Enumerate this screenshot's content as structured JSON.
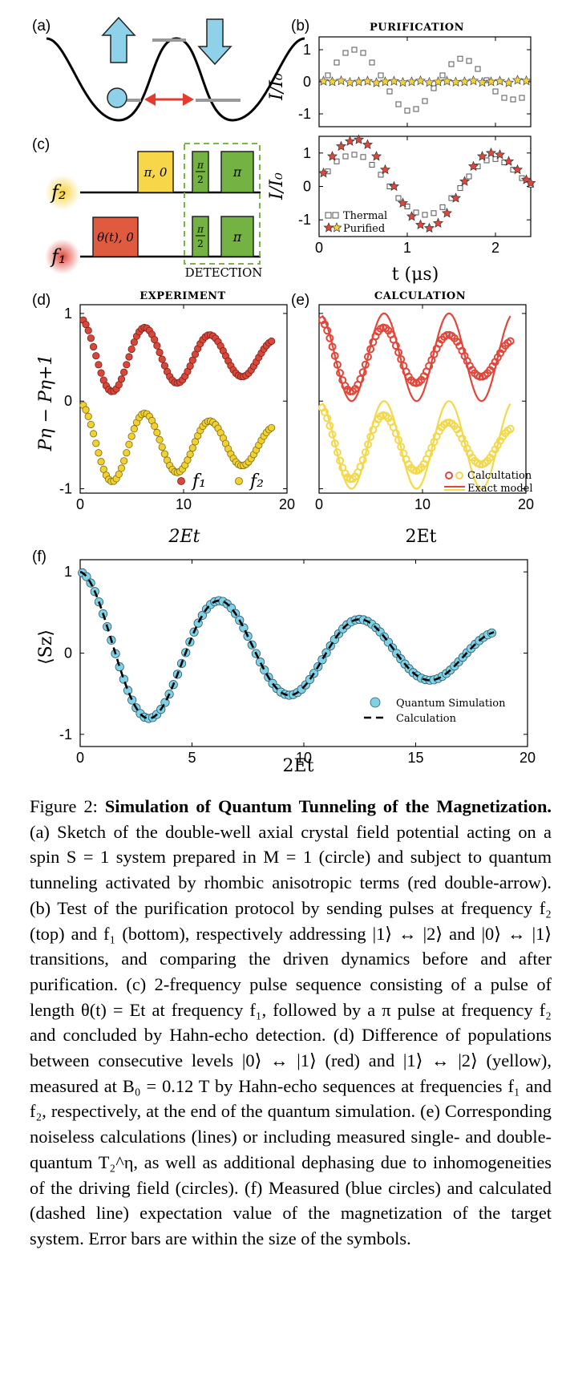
{
  "panels": {
    "a": {
      "label": "(a)"
    },
    "b": {
      "label": "(b)",
      "title": "PURIFICATION",
      "ylabel": "I/I₀",
      "xlabel": "t (μs)",
      "legend": [
        "Thermal",
        "Purified"
      ]
    },
    "c": {
      "label": "(c)",
      "freq_top": "f₂",
      "freq_bottom": "f₁",
      "pulse_pi0": "π, 0",
      "pulse_theta": "θ(t), 0",
      "pulse_pi_half_num": "π",
      "pulse_pi_half_den": "2",
      "pulse_pi": "π",
      "detection": "DETECTION"
    },
    "d": {
      "label": "(d)",
      "title": "EXPERIMENT",
      "ylabel": "Pη − Pη+1",
      "xlabel": "2Et",
      "legend": [
        "f₁",
        "f₂"
      ]
    },
    "e": {
      "label": "(e)",
      "title": "CALCULATION",
      "xlabel": "2Et",
      "legend": [
        "Calcultation",
        "Exact model"
      ]
    },
    "f": {
      "label": "(f)",
      "ylabel": "⟨Sz⟩",
      "xlabel": "2Et",
      "legend": [
        "Quantum Simulation",
        "Calculation"
      ]
    }
  },
  "chart_data": [
    {
      "type": "scatter",
      "panel": "b-top",
      "title": "PURIFICATION",
      "ylabel": "I/I₀",
      "xlim": [
        0,
        2.4
      ],
      "ylim": [
        -1.4,
        1.4
      ],
      "xticks": [
        0,
        1,
        2
      ],
      "yticks": [
        1,
        0,
        -1
      ],
      "series": [
        {
          "name": "Thermal",
          "marker": "open-square",
          "x": [
            0.1,
            0.2,
            0.3,
            0.4,
            0.5,
            0.6,
            0.7,
            0.8,
            0.9,
            1.0,
            1.1,
            1.2,
            1.3,
            1.4,
            1.5,
            1.6,
            1.7,
            1.8,
            1.9,
            2.0,
            2.1,
            2.2,
            2.3
          ],
          "y": [
            0.2,
            0.6,
            0.9,
            1.0,
            0.9,
            0.6,
            0.2,
            -0.3,
            -0.7,
            -0.9,
            -0.85,
            -0.6,
            -0.2,
            0.2,
            0.55,
            0.72,
            0.65,
            0.4,
            0.05,
            -0.3,
            -0.5,
            -0.55,
            -0.5
          ]
        },
        {
          "name": "Purified",
          "marker": "star",
          "x": [
            0.05,
            0.15,
            0.25,
            0.35,
            0.45,
            0.55,
            0.65,
            0.75,
            0.85,
            0.95,
            1.05,
            1.15,
            1.25,
            1.35,
            1.45,
            1.55,
            1.65,
            1.75,
            1.85,
            1.95,
            2.05,
            2.15,
            2.25,
            2.35
          ],
          "y": [
            0.02,
            0,
            0.03,
            -0.02,
            0,
            0.02,
            -0.03,
            0,
            0.02,
            -0.02,
            0,
            0.03,
            -0.02,
            0,
            0.02,
            -0.01,
            0,
            0.03,
            -0.02,
            0,
            0.02,
            -0.03,
            0.05,
            0.03
          ]
        }
      ]
    },
    {
      "type": "scatter",
      "panel": "b-bottom",
      "ylabel": "I/I₀",
      "xlabel": "t (μs)",
      "xlim": [
        0,
        2.4
      ],
      "ylim": [
        -1.5,
        1.5
      ],
      "xticks": [
        0,
        1,
        2
      ],
      "yticks": [
        1,
        0,
        -1
      ],
      "series": [
        {
          "name": "Thermal",
          "marker": "open-square",
          "x": [
            0.1,
            0.2,
            0.3,
            0.4,
            0.5,
            0.6,
            0.7,
            0.8,
            0.9,
            1.0,
            1.1,
            1.2,
            1.3,
            1.4,
            1.5,
            1.6,
            1.7,
            1.8,
            1.9,
            2.0,
            2.1,
            2.2,
            2.3,
            2.4
          ],
          "y": [
            0.45,
            0.75,
            0.9,
            0.95,
            0.88,
            0.65,
            0.35,
            0,
            -0.35,
            -0.6,
            -0.78,
            -0.85,
            -0.8,
            -0.62,
            -0.35,
            -0.05,
            0.3,
            0.6,
            0.78,
            0.82,
            0.72,
            0.5,
            0.25,
            0.05
          ]
        },
        {
          "name": "Purified",
          "marker": "star",
          "x": [
            0.05,
            0.15,
            0.25,
            0.35,
            0.45,
            0.55,
            0.65,
            0.75,
            0.85,
            0.95,
            1.05,
            1.15,
            1.25,
            1.35,
            1.45,
            1.55,
            1.65,
            1.75,
            1.85,
            1.95,
            2.05,
            2.15,
            2.25,
            2.35,
            2.4
          ],
          "y": [
            0.4,
            0.9,
            1.2,
            1.35,
            1.4,
            1.25,
            0.9,
            0.5,
            0,
            -0.5,
            -0.9,
            -1.15,
            -1.25,
            -1.1,
            -0.8,
            -0.35,
            0.15,
            0.6,
            0.9,
            1.0,
            0.95,
            0.75,
            0.5,
            0.2,
            0.1
          ]
        }
      ]
    },
    {
      "type": "scatter",
      "panel": "d",
      "title": "EXPERIMENT",
      "ylabel": "Pη − Pη+1",
      "xlabel": "2Et",
      "xlim": [
        0,
        20
      ],
      "ylim": [
        -1.05,
        1.1
      ],
      "xticks": [
        0,
        10,
        20
      ],
      "yticks": [
        1,
        0,
        -1
      ],
      "series": [
        {
          "name": "f₁",
          "color": "#d9473b",
          "model": "y = 0.5 + 0.45·e^(−0.045x)·cos(1.0x)",
          "x_range": [
            0.3,
            18.5
          ],
          "points": 75
        },
        {
          "name": "f₂",
          "color": "#f1d02f",
          "model": "y = −0.5 + 0.48·e^(−0.045x)·cos(1.0x)",
          "x_range": [
            0.3,
            18.5
          ],
          "points": 75
        }
      ]
    },
    {
      "type": "line+scatter",
      "panel": "e",
      "title": "CALCULATION",
      "xlabel": "2Et",
      "xlim": [
        0,
        20
      ],
      "ylim": [
        -1.05,
        1.1
      ],
      "xticks": [
        0,
        10,
        20
      ],
      "series": [
        {
          "name": "Calcultation",
          "marker": "open-circle",
          "model": "y = ±0.5 + 0.45·e^(−0.045x)·cos(1.0x)",
          "x_range": [
            0.3,
            18.5
          ],
          "points": 75
        },
        {
          "name": "Exact model",
          "marker": "line",
          "model": "y = ±0.5 + 0.5·cos(1.0x)",
          "x_range": [
            0.3,
            18.5
          ]
        }
      ]
    },
    {
      "type": "line+scatter",
      "panel": "f",
      "ylabel": "⟨Sz⟩",
      "xlabel": "2Et",
      "xlim": [
        0,
        20
      ],
      "ylim": [
        -1.15,
        1.15
      ],
      "xticks": [
        0,
        5,
        10,
        15,
        20
      ],
      "yticks": [
        1,
        0,
        -1
      ],
      "series": [
        {
          "name": "Quantum Simulation",
          "marker": "filled-circle",
          "color": "#7fd1e6",
          "model": "y = e^(−0.07x)·cos(1.0x)",
          "x_range": [
            0.1,
            18.4
          ],
          "points": 100
        },
        {
          "name": "Calculation",
          "marker": "dashed-line",
          "model": "y = e^(−0.07x)·cos(1.0x)",
          "x_range": [
            0,
            18.5
          ]
        }
      ]
    }
  ],
  "caption": {
    "fig_label": "Figure 2: ",
    "title": "Simulation of Quantum Tunneling of the Magnetization.",
    "text": " (a) Sketch of the double-well axial crystal field potential acting on a spin S = 1 system prepared in M = 1 (circle) and subject to quantum tunneling activated by rhombic anisotropic terms (red double-arrow). (b) Test of the purification protocol by sending pulses at frequency f₂ (top) and f₁ (bottom), respectively addressing |1⟩ ↔ |2⟩ and |0⟩ ↔ |1⟩ transitions, and comparing the driven dynamics before and after purification. (c) 2-frequency pulse sequence consisting of a pulse of length θ(t) = Et at frequency f₁, followed by a π pulse at frequency f₂ and concluded by Hahn-echo detection. (d) Difference of populations between consecutive levels |0⟩ ↔ |1⟩ (red) and |1⟩ ↔ |2⟩ (yellow), measured at B₀ = 0.12 T by Hahn-echo sequences at frequencies f₁ and f₂, respectively, at the end of the quantum simulation. (e) Corresponding noiseless calculations (lines) or including measured single- and double-quantum T₂^η, as well as additional dephasing due to inhomogeneities of the driving field (circles). (f) Measured (blue circles) and calculated (dashed line) expectation value of the magnetization of the target system. Error bars are within the size of the symbols."
  }
}
